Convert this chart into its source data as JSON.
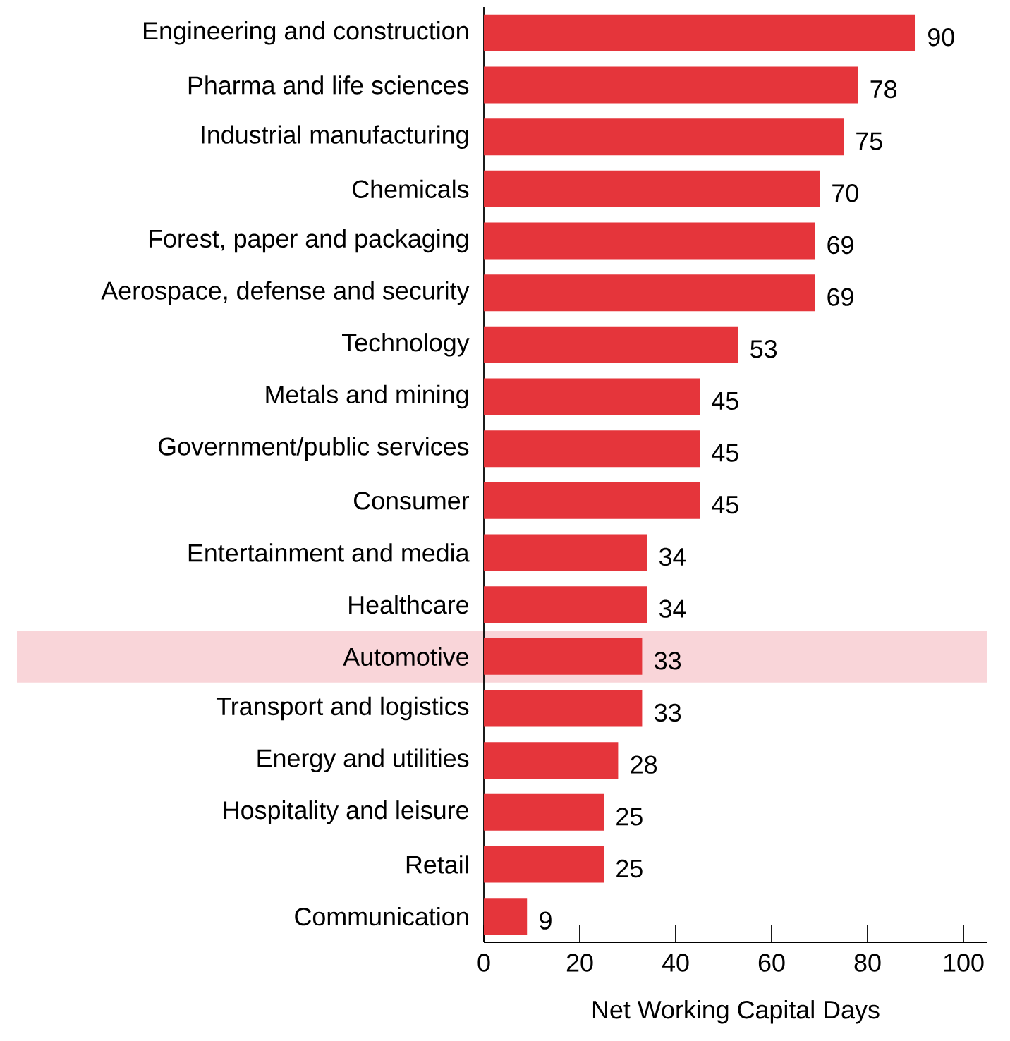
{
  "chart_data": {
    "type": "bar",
    "orientation": "horizontal",
    "xlabel": "Net Working Capital Days",
    "categories": [
      "Engineering and construction",
      "Pharma and life sciences",
      "Industrial manufacturing",
      "Chemicals",
      "Forest, paper and packaging",
      "Aerospace, defense and security",
      "Technology",
      "Metals and mining",
      "Government/public services",
      "Consumer",
      "Entertainment and media",
      "Healthcare",
      "Automotive",
      "Transport and logistics",
      "Energy and utilities",
      "Hospitality and leisure",
      "Retail",
      "Communication"
    ],
    "values": [
      90,
      78,
      75,
      70,
      69,
      69,
      53,
      45,
      45,
      45,
      34,
      34,
      33,
      33,
      28,
      25,
      25,
      9
    ],
    "color": "#e5353b",
    "data_labels": true,
    "xlim": [
      0,
      105
    ],
    "xticks": [
      0,
      20,
      40,
      60,
      80,
      100
    ],
    "bands": [
      {
        "axis": "y",
        "from": "Automotive",
        "to": "Automotive",
        "color": "#f9d5d9"
      }
    ]
  }
}
